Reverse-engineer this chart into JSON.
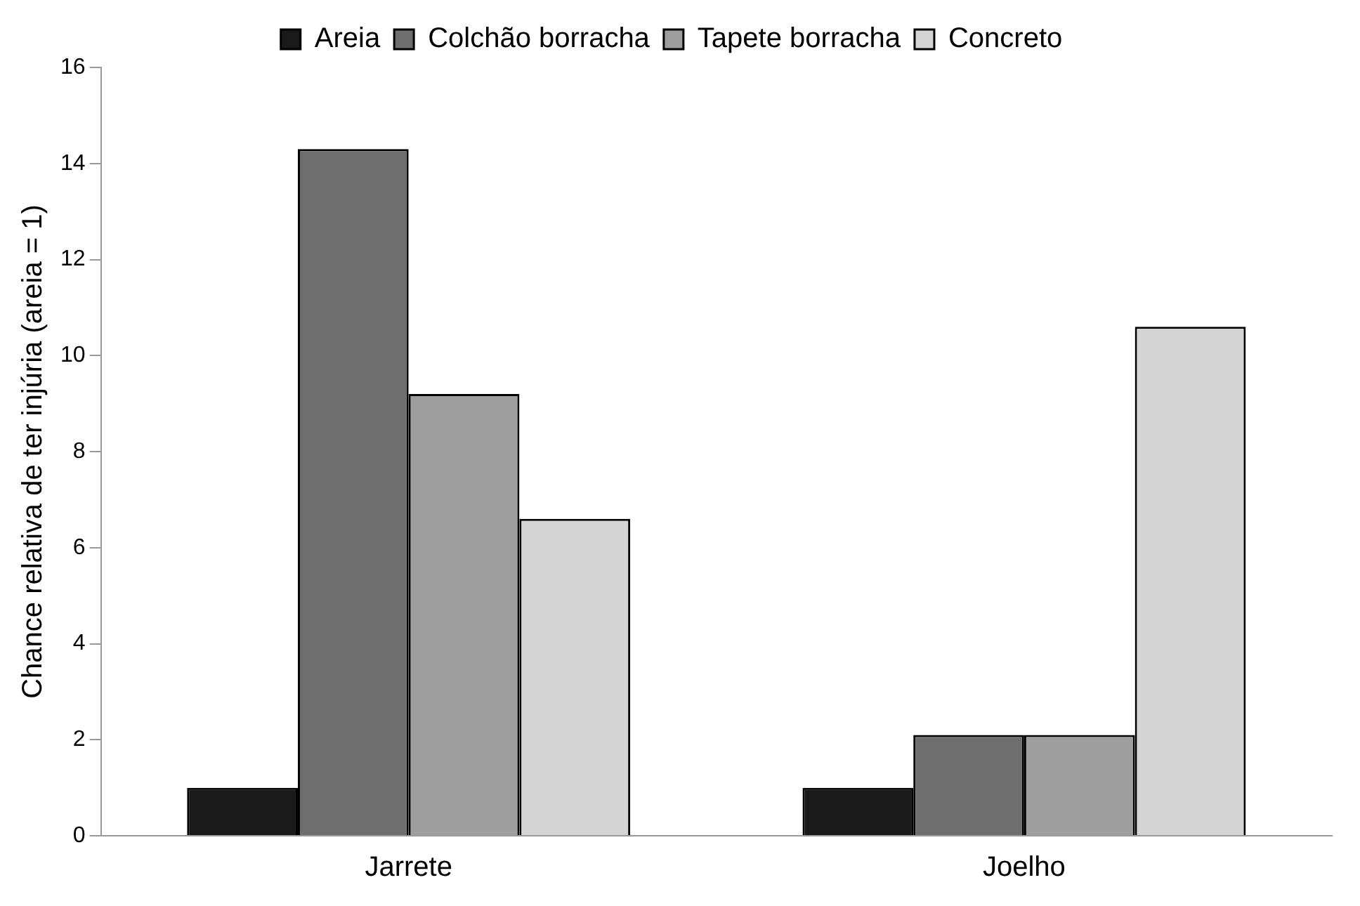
{
  "chart_data": {
    "type": "bar",
    "ylabel": "Chance relativa de ter injúria (areia = 1)",
    "categories": [
      "Jarrete",
      "Joelho"
    ],
    "series": [
      {
        "name": "Areia",
        "color": "#1a1a1a",
        "values": [
          1,
          1
        ]
      },
      {
        "name": "Colchão borracha",
        "color": "#6e6e6e",
        "values": [
          14.3,
          2.1
        ]
      },
      {
        "name": "Tapete borracha",
        "color": "#9e9e9e",
        "values": [
          9.2,
          2.1
        ]
      },
      {
        "name": "Concreto",
        "color": "#d4d4d4",
        "values": [
          6.6,
          10.6
        ]
      }
    ],
    "ylim": [
      0,
      16
    ],
    "yticks": [
      0,
      2,
      4,
      6,
      8,
      10,
      12,
      14,
      16
    ],
    "grid": false,
    "legend": "top"
  }
}
